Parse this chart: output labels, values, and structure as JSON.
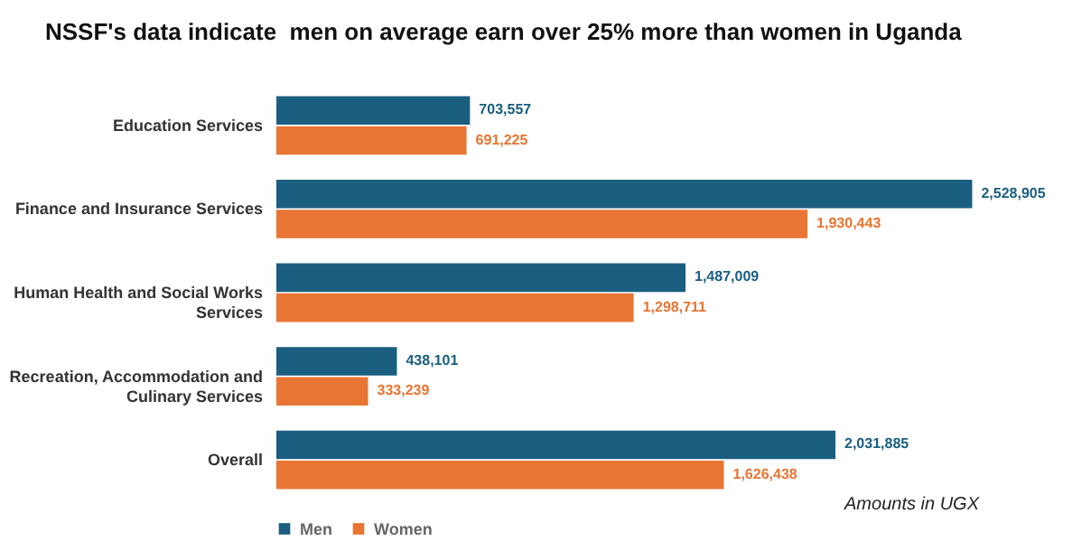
{
  "chart_data": {
    "type": "bar",
    "orientation": "horizontal",
    "title": "NSSF's data indicate  men on average earn over 25% more than women in Uganda",
    "categories": [
      "Education Services",
      "Finance and Insurance Services",
      "Human Health and Social Works Services",
      "Recreation, Accommodation and Culinary Services",
      "Overall"
    ],
    "series": [
      {
        "name": "Men",
        "color": "#1a5e80",
        "values": [
          703557,
          2528905,
          1487009,
          438101,
          2031885
        ],
        "value_labels": [
          "703,557",
          "2,528,905",
          "1,487,009",
          "438,101",
          "2,031,885"
        ]
      },
      {
        "name": "Women",
        "color": "#e87533",
        "values": [
          691225,
          1930443,
          1298711,
          333239,
          1626438
        ],
        "value_labels": [
          "691,225",
          "1,930,443",
          "1,298,711",
          "333,239",
          "1,626,438"
        ]
      }
    ],
    "legend": "bottom",
    "annotations": [
      "Amounts in UGX"
    ]
  }
}
